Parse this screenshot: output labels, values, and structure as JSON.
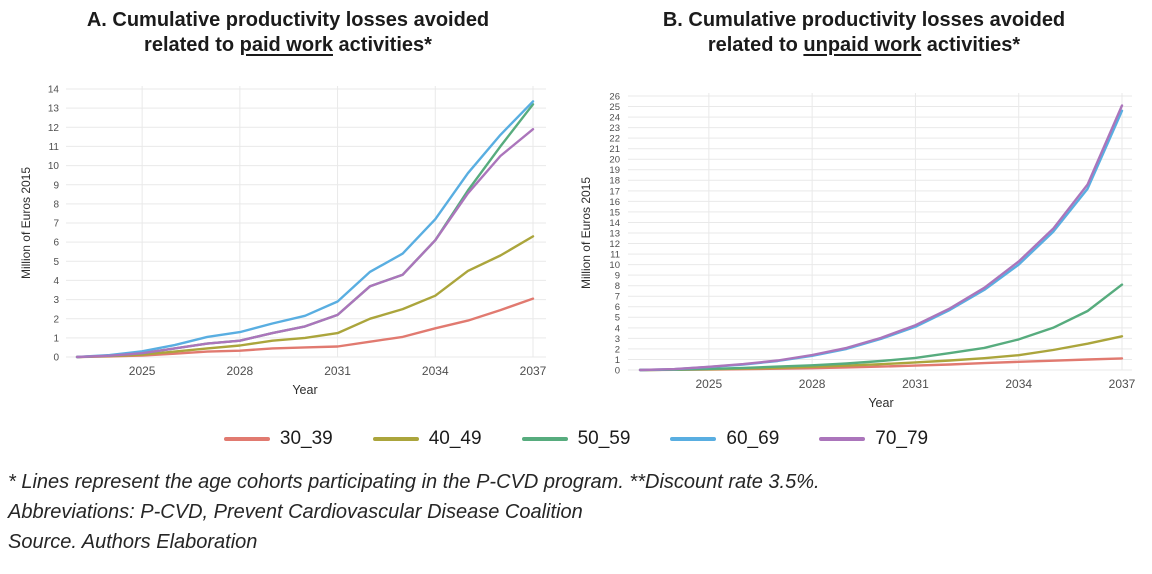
{
  "figure": {
    "legend": [
      {
        "label": "30_39",
        "color": "#E17A70"
      },
      {
        "label": "40_49",
        "color": "#ABA53C"
      },
      {
        "label": "50_59",
        "color": "#57AC7E"
      },
      {
        "label": "60_69",
        "color": "#59AEE1"
      },
      {
        "label": "70_79",
        "color": "#AB75BB"
      }
    ],
    "footnotes": [
      "* Lines represent the age cohorts participating in the P-CVD program. **Discount rate 3.5%.",
      "Abbreviations: P-CVD, Prevent Cardiovascular Disease Coalition",
      "Source. Authors Elaboration"
    ]
  },
  "chart_data": [
    {
      "type": "line",
      "panel": "A",
      "title": "A. Cumulative productivity losses avoided related to paid work activities*",
      "title_l1": "A. Cumulative productivity losses avoided",
      "title_l2_pre": "related to ",
      "title_l2_underline": "paid work",
      "title_l2_post": " activities*",
      "xlabel": "Year",
      "ylabel": "Million of Euros 2015",
      "ylim": [
        0,
        14
      ],
      "ytick_step": 1,
      "xticks": [
        2025,
        2028,
        2031,
        2034,
        2037
      ],
      "x": [
        2023,
        2024,
        2025,
        2026,
        2027,
        2028,
        2029,
        2030,
        2031,
        2032,
        2033,
        2034,
        2035,
        2036,
        2037
      ],
      "grid": true,
      "legend_position": "bottom",
      "series": [
        {
          "name": "30_39",
          "color": "#E17A70",
          "values": [
            0,
            0.03,
            0.08,
            0.17,
            0.28,
            0.33,
            0.45,
            0.5,
            0.55,
            0.8,
            1.05,
            1.5,
            1.9,
            2.45,
            3.05
          ]
        },
        {
          "name": "40_49",
          "color": "#ABA53C",
          "values": [
            0,
            0.05,
            0.12,
            0.28,
            0.45,
            0.6,
            0.85,
            1.0,
            1.25,
            2.0,
            2.5,
            3.2,
            4.5,
            5.3,
            6.3
          ]
        },
        {
          "name": "50_59",
          "color": "#57AC7E",
          "values": [
            0,
            0.07,
            0.2,
            0.45,
            0.7,
            0.85,
            1.25,
            1.6,
            2.2,
            3.7,
            4.3,
            6.1,
            8.7,
            11.0,
            13.2
          ]
        },
        {
          "name": "60_69",
          "color": "#59AEE1",
          "values": [
            0,
            0.1,
            0.3,
            0.62,
            1.05,
            1.3,
            1.75,
            2.15,
            2.9,
            4.45,
            5.4,
            7.2,
            9.6,
            11.6,
            13.35
          ]
        },
        {
          "name": "70_79",
          "color": "#AB75BB",
          "values": [
            0,
            0.07,
            0.2,
            0.45,
            0.7,
            0.85,
            1.25,
            1.6,
            2.2,
            3.7,
            4.3,
            6.1,
            8.55,
            10.5,
            11.9
          ]
        }
      ]
    },
    {
      "type": "line",
      "panel": "B",
      "title": "B. Cumulative productivity losses avoided related to unpaid work activities*",
      "title_l1": "B. Cumulative productivity losses avoided",
      "title_l2_pre": "related to ",
      "title_l2_underline": "unpaid work",
      "title_l2_post": " activities*",
      "xlabel": "Year",
      "ylabel": "Million of Euros 2015",
      "ylim": [
        0,
        26
      ],
      "ytick_step": 1,
      "xticks": [
        2025,
        2028,
        2031,
        2034,
        2037
      ],
      "x": [
        2023,
        2024,
        2025,
        2026,
        2027,
        2028,
        2029,
        2030,
        2031,
        2032,
        2033,
        2034,
        2035,
        2036,
        2037
      ],
      "grid": true,
      "legend_position": "bottom",
      "series": [
        {
          "name": "30_39",
          "color": "#E17A70",
          "values": [
            0,
            0.02,
            0.05,
            0.08,
            0.12,
            0.17,
            0.25,
            0.32,
            0.42,
            0.52,
            0.65,
            0.78,
            0.88,
            1.0,
            1.1
          ]
        },
        {
          "name": "40_49",
          "color": "#ABA53C",
          "values": [
            0,
            0.03,
            0.07,
            0.13,
            0.2,
            0.3,
            0.42,
            0.55,
            0.72,
            0.9,
            1.12,
            1.4,
            1.9,
            2.5,
            3.2
          ]
        },
        {
          "name": "50_59",
          "color": "#57AC7E",
          "values": [
            0,
            0.03,
            0.1,
            0.2,
            0.32,
            0.45,
            0.62,
            0.85,
            1.15,
            1.6,
            2.1,
            2.9,
            4.0,
            5.6,
            8.1
          ]
        },
        {
          "name": "60_69",
          "color": "#59AEE1",
          "values": [
            0,
            0.08,
            0.28,
            0.52,
            0.85,
            1.35,
            2.0,
            2.95,
            4.1,
            5.7,
            7.6,
            10.0,
            13.1,
            17.2,
            24.6
          ]
        },
        {
          "name": "70_79",
          "color": "#AB75BB",
          "values": [
            0,
            0.09,
            0.3,
            0.56,
            0.9,
            1.42,
            2.1,
            3.05,
            4.25,
            5.85,
            7.8,
            10.3,
            13.4,
            17.6,
            25.1
          ]
        }
      ]
    }
  ]
}
